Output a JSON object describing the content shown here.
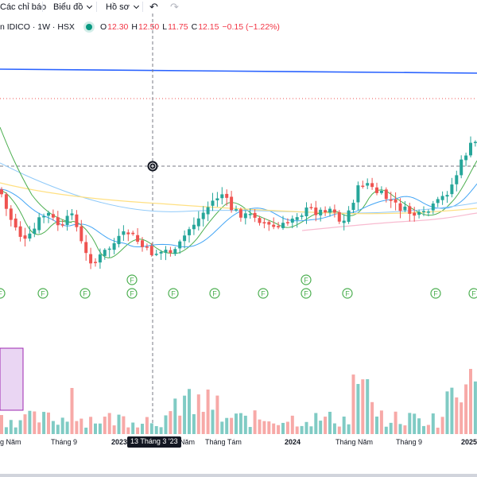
{
  "toolbar": {
    "indicators_label": "Các chỉ báo",
    "chart_label": "Biểu đồ",
    "profile_label": "Hồ sơ",
    "undo_icon": "undo-icon",
    "redo_icon": "redo-icon"
  },
  "legend": {
    "symbol": "n IDICO · 1W · HSX",
    "status_color": "#089981",
    "open_key": "O",
    "open": "12.30",
    "high_key": "H",
    "high": "12.50",
    "low_key": "L",
    "low": "11.75",
    "close_key": "C",
    "close": "12.15",
    "change": "−0.15 (−1.22%)"
  },
  "colors": {
    "up": "#26a69a",
    "down": "#ef5350",
    "horizontal_line": "#2962ff",
    "dotted_line": "#ef5350",
    "ma_fast": "#4caf50",
    "ma_mid": "#42a5f5",
    "ma_slow": "#90caf9",
    "ma_yellow": "#ffe082",
    "ma_pink": "#f8bbd0"
  },
  "time_axis": {
    "labels": [
      "g Năm",
      "Tháng 9",
      "2023",
      "Năm",
      "Tháng Tám",
      "2024",
      "Tháng Năm",
      "Tháng 9",
      "2025"
    ],
    "crosshair_label": "13 Tháng 3 '23"
  },
  "markers": {
    "dividend_label": "F",
    "positions": [
      0,
      54,
      107,
      166,
      218,
      270,
      331,
      385,
      437,
      548,
      596
    ],
    "raised": [
      166,
      385
    ]
  },
  "chart_data": {
    "type": "candlestick",
    "timeframe": "1W",
    "last_bar": {
      "open": 12.3,
      "high": 12.5,
      "low": 11.75,
      "close": 12.15
    }
  }
}
